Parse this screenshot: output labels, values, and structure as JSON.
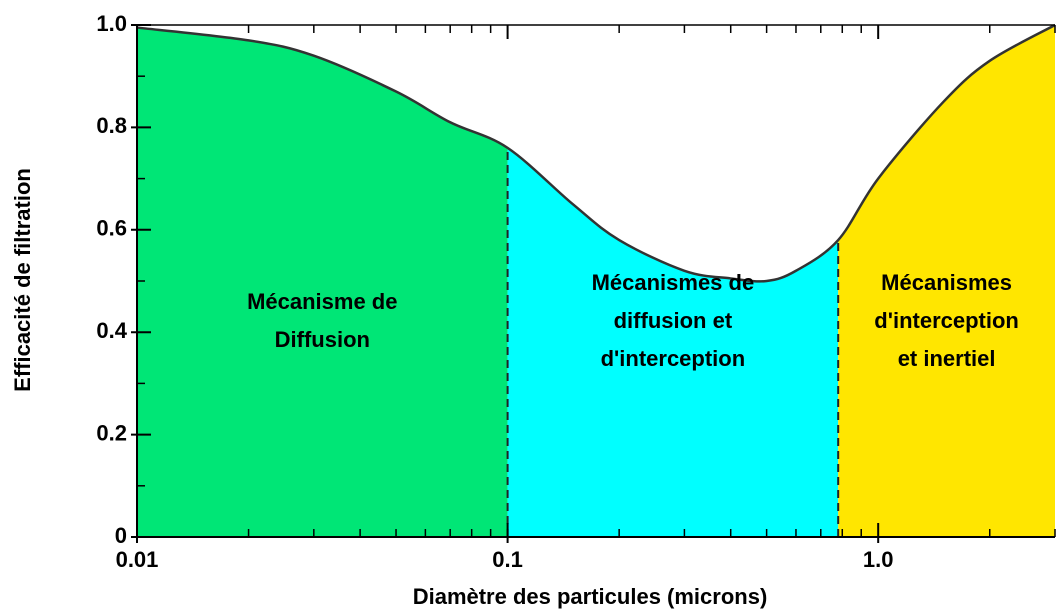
{
  "chart_data": {
    "type": "area",
    "x_label": "Diamètre des particules (microns)",
    "y_label": "Efficacité de filtration",
    "log_x": true,
    "x": [
      0.01,
      0.02,
      0.03,
      0.05,
      0.07,
      0.1,
      0.15,
      0.2,
      0.3,
      0.4,
      0.5,
      0.6,
      0.78,
      1.0,
      1.5,
      2,
      3
    ],
    "values": [
      0.995,
      0.97,
      0.94,
      0.87,
      0.81,
      0.76,
      0.65,
      0.58,
      0.52,
      0.505,
      0.5,
      0.52,
      0.58,
      0.7,
      0.85,
      0.93,
      1.0
    ],
    "line_color": "#333333",
    "regions": [
      {
        "start": 0.01,
        "end": 0.1,
        "color": "#00e676",
        "label": [
          "Mécanisme de",
          "Diffusion"
        ]
      },
      {
        "start": 0.1,
        "end": 0.78,
        "color": "#00ffff",
        "label": [
          "Mécanismes de",
          "diffusion et",
          "d'interception"
        ]
      },
      {
        "start": 0.78,
        "end": 3,
        "color": "#ffe600",
        "label": [
          "Mécanismes",
          "d'interception",
          "et inertiel"
        ]
      }
    ],
    "xlim": [
      0.01,
      3
    ],
    "ylim": [
      0,
      1
    ],
    "xticks": [
      0.01,
      0.1,
      {
        "value": 1,
        "label": "1.0"
      }
    ],
    "xminorticks": [
      0.02,
      0.03,
      0.04,
      0.05,
      0.06,
      0.07,
      0.08,
      0.09,
      0.2,
      0.3,
      0.4,
      0.5,
      0.6,
      0.7,
      0.8,
      0.9,
      2,
      3
    ],
    "yticks": [
      0,
      0.2,
      0.4,
      0.6,
      0.8,
      {
        "value": 1,
        "label": "1.0"
      }
    ],
    "yminorticks": [
      0.1,
      0.3,
      0.5,
      0.7,
      0.9
    ]
  }
}
